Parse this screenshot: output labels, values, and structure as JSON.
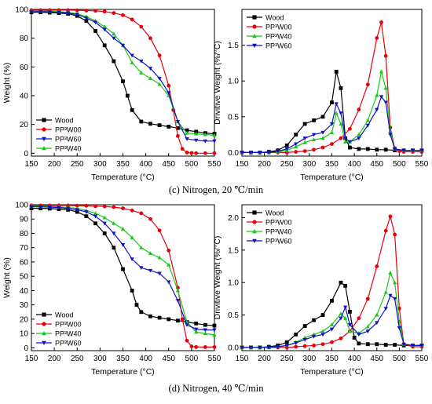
{
  "captions": [
    {
      "letter": "(c)",
      "text": "Nitrogen, 20 ℃/min"
    },
    {
      "letter": "(d)",
      "text": "Nitrogen, 40 ℃/min"
    }
  ],
  "series_styles": [
    {
      "color": "#000000",
      "marker": "square"
    },
    {
      "color": "#e8000b",
      "marker": "circle"
    },
    {
      "color": "#18c818",
      "marker": "triangle-up"
    },
    {
      "color": "#1010c8",
      "marker": "triangle-down"
    }
  ],
  "chart_data": [
    {
      "type": "line",
      "xlabel": "Temperature (°C)",
      "ylabel": "Weight (%)",
      "xlim": [
        150,
        550
      ],
      "ylim": [
        -2,
        100
      ],
      "xticks": [
        150,
        200,
        250,
        300,
        350,
        400,
        450,
        500,
        550
      ],
      "yticks": [
        0,
        20,
        40,
        60,
        80,
        100
      ],
      "legend_position": "bottom-left",
      "legend_order": [
        0,
        1,
        3,
        2
      ],
      "series": [
        {
          "name": "Wood",
          "x": [
            150,
            170,
            190,
            210,
            230,
            250,
            270,
            290,
            310,
            330,
            350,
            360,
            370,
            390,
            410,
            430,
            450,
            470,
            490,
            510,
            530,
            550
          ],
          "y": [
            98,
            98,
            97.8,
            97.5,
            97,
            95.5,
            92,
            85,
            75,
            64,
            50,
            40,
            30,
            22,
            20.5,
            19.5,
            18.5,
            17.5,
            16,
            15,
            14,
            13.5
          ]
        },
        {
          "name": "PP³W00",
          "x": [
            150,
            170,
            190,
            210,
            230,
            250,
            270,
            290,
            310,
            330,
            350,
            370,
            390,
            410,
            430,
            450,
            460,
            470,
            480,
            490,
            500,
            510,
            530,
            550
          ],
          "y": [
            99.5,
            99.5,
            99.5,
            99.5,
            99.5,
            99.4,
            99.2,
            99,
            98.5,
            97.5,
            96,
            93,
            88,
            80,
            68,
            47,
            30,
            12,
            3,
            0.5,
            0.2,
            0,
            0,
            0
          ]
        },
        {
          "name": "PP³W40",
          "x": [
            150,
            170,
            190,
            210,
            230,
            250,
            270,
            290,
            310,
            330,
            350,
            370,
            390,
            410,
            430,
            450,
            470,
            490,
            510,
            530,
            550
          ],
          "y": [
            99,
            99,
            98.8,
            98.5,
            98,
            97,
            95,
            92,
            88,
            83,
            75,
            63,
            56,
            52,
            48,
            40,
            22,
            14,
            13.5,
            13,
            12.5
          ]
        },
        {
          "name": "PP³W60",
          "x": [
            150,
            170,
            190,
            210,
            230,
            250,
            270,
            290,
            310,
            330,
            350,
            370,
            390,
            410,
            430,
            450,
            470,
            490,
            510,
            530,
            550
          ],
          "y": [
            98.5,
            98.5,
            98.3,
            98,
            97.5,
            96.5,
            94,
            91,
            86,
            80,
            75,
            68,
            64,
            59,
            52,
            42,
            22,
            10,
            9,
            8.5,
            8.5
          ]
        }
      ]
    },
    {
      "type": "line",
      "xlabel": "Temperature (°C)",
      "ylabel": "Drivitive Weight (%/°C)",
      "xlim": [
        150,
        550
      ],
      "ylim": [
        -0.05,
        2.0
      ],
      "xticks": [
        150,
        200,
        250,
        300,
        350,
        400,
        450,
        500,
        550
      ],
      "yticks": [
        0.0,
        0.5,
        1.0,
        1.5
      ],
      "legend_position": "top-left",
      "legend_order": [
        0,
        1,
        2,
        3
      ],
      "series": [
        {
          "name": "Wood",
          "x": [
            150,
            170,
            190,
            210,
            230,
            250,
            270,
            290,
            310,
            330,
            350,
            360,
            370,
            380,
            390,
            410,
            430,
            450,
            470,
            490,
            510,
            530,
            550
          ],
          "y": [
            0,
            0,
            0,
            0.01,
            0.03,
            0.1,
            0.25,
            0.4,
            0.45,
            0.5,
            0.7,
            1.13,
            0.9,
            0.2,
            0.07,
            0.05,
            0.05,
            0.04,
            0.04,
            0.03,
            0.03,
            0.03,
            0.03
          ]
        },
        {
          "name": "PP³W00",
          "x": [
            150,
            170,
            190,
            210,
            230,
            250,
            270,
            290,
            310,
            330,
            350,
            370,
            390,
            410,
            430,
            450,
            460,
            470,
            480,
            490,
            500,
            510,
            530,
            550
          ],
          "y": [
            0,
            0,
            0,
            0,
            0,
            0,
            0.01,
            0.02,
            0.04,
            0.07,
            0.12,
            0.2,
            0.33,
            0.6,
            0.95,
            1.6,
            1.82,
            1.35,
            0.35,
            0.06,
            0.02,
            0.01,
            0.01,
            0.01
          ]
        },
        {
          "name": "PP³W40",
          "x": [
            150,
            170,
            190,
            210,
            230,
            250,
            270,
            290,
            310,
            330,
            350,
            360,
            370,
            380,
            390,
            410,
            430,
            450,
            460,
            470,
            480,
            490,
            510,
            530,
            550
          ],
          "y": [
            0,
            0,
            0,
            0,
            0.01,
            0.03,
            0.08,
            0.14,
            0.18,
            0.2,
            0.28,
            0.55,
            0.4,
            0.15,
            0.15,
            0.25,
            0.45,
            0.8,
            1.13,
            0.9,
            0.3,
            0.05,
            0.03,
            0.03,
            0.03
          ]
        },
        {
          "name": "PP³W60",
          "x": [
            150,
            170,
            190,
            210,
            230,
            250,
            270,
            290,
            310,
            330,
            350,
            360,
            370,
            380,
            390,
            410,
            430,
            450,
            460,
            470,
            480,
            490,
            510,
            530,
            550
          ],
          "y": [
            0,
            0,
            0,
            0,
            0.02,
            0.05,
            0.12,
            0.2,
            0.25,
            0.28,
            0.4,
            0.68,
            0.55,
            0.2,
            0.15,
            0.2,
            0.38,
            0.6,
            0.78,
            0.7,
            0.25,
            0.05,
            0.03,
            0.03,
            0.03
          ]
        }
      ]
    },
    {
      "type": "line",
      "xlabel": "Temperature (°C)",
      "ylabel": "Weight (%)",
      "xlim": [
        150,
        550
      ],
      "ylim": [
        -2,
        100
      ],
      "xticks": [
        150,
        200,
        250,
        300,
        350,
        400,
        450,
        500,
        550
      ],
      "yticks": [
        0,
        10,
        20,
        30,
        40,
        50,
        60,
        70,
        80,
        90,
        100
      ],
      "legend_position": "bottom-left",
      "legend_order": [
        0,
        1,
        2,
        3
      ],
      "series": [
        {
          "name": "Wood",
          "x": [
            150,
            170,
            190,
            210,
            230,
            250,
            270,
            290,
            310,
            330,
            350,
            370,
            380,
            390,
            410,
            430,
            450,
            470,
            490,
            510,
            530,
            550
          ],
          "y": [
            97.5,
            97.5,
            97.3,
            97,
            96.5,
            95,
            92,
            87,
            80,
            70,
            55,
            40,
            30,
            25,
            22,
            21,
            20,
            19,
            18,
            17,
            16,
            15.5
          ]
        },
        {
          "name": "PP³W00",
          "x": [
            150,
            170,
            190,
            210,
            230,
            250,
            270,
            290,
            310,
            330,
            350,
            370,
            390,
            410,
            430,
            450,
            470,
            480,
            490,
            500,
            510,
            530,
            550
          ],
          "y": [
            99.5,
            99.5,
            99.5,
            99.5,
            99.5,
            99.4,
            99.3,
            99,
            98.8,
            98.3,
            97.5,
            96,
            94,
            90,
            82,
            68,
            42,
            20,
            5,
            1,
            0.5,
            0.5,
            0.5
          ]
        },
        {
          "name": "PP³W40",
          "x": [
            150,
            170,
            190,
            210,
            230,
            250,
            270,
            290,
            310,
            330,
            350,
            370,
            390,
            410,
            430,
            450,
            470,
            490,
            510,
            530,
            550
          ],
          "y": [
            99,
            99,
            98.8,
            98.5,
            98,
            97.5,
            96,
            94,
            91,
            87,
            83,
            77,
            70,
            66,
            63,
            58,
            40,
            18,
            11,
            10,
            9
          ]
        },
        {
          "name": "PP³W60",
          "x": [
            150,
            170,
            190,
            210,
            230,
            250,
            270,
            290,
            310,
            330,
            350,
            370,
            390,
            410,
            430,
            450,
            470,
            490,
            510,
            530,
            550
          ],
          "y": [
            98.5,
            98.5,
            98.3,
            98,
            97.5,
            96.5,
            95,
            92,
            87,
            80,
            72,
            62,
            56,
            54,
            52,
            46,
            33,
            16,
            13,
            12.5,
            12.5
          ]
        }
      ]
    },
    {
      "type": "line",
      "xlabel": "Temperature (°C)",
      "ylabel": "Drivitive Weight (%/°C)",
      "xlim": [
        150,
        550
      ],
      "ylim": [
        -0.05,
        2.2
      ],
      "xticks": [
        150,
        200,
        250,
        300,
        350,
        400,
        450,
        500,
        550
      ],
      "yticks": [
        0.0,
        0.5,
        1.0,
        1.5,
        2.0
      ],
      "legend_position": "top-left",
      "legend_order": [
        0,
        1,
        2,
        3
      ],
      "series": [
        {
          "name": "Wood",
          "x": [
            150,
            170,
            190,
            210,
            230,
            250,
            270,
            290,
            310,
            330,
            350,
            370,
            380,
            390,
            400,
            410,
            430,
            450,
            470,
            490,
            510,
            530,
            550
          ],
          "y": [
            0,
            0,
            0,
            0.01,
            0.03,
            0.08,
            0.2,
            0.33,
            0.42,
            0.5,
            0.72,
            1.0,
            0.95,
            0.55,
            0.15,
            0.06,
            0.05,
            0.05,
            0.04,
            0.04,
            0.03,
            0.03,
            0.03
          ]
        },
        {
          "name": "PP³W00",
          "x": [
            150,
            170,
            190,
            210,
            230,
            250,
            270,
            290,
            310,
            330,
            350,
            370,
            390,
            410,
            430,
            450,
            470,
            480,
            490,
            500,
            510,
            530,
            550
          ],
          "y": [
            0,
            0,
            0,
            0,
            0,
            0,
            0.01,
            0.02,
            0.03,
            0.05,
            0.08,
            0.14,
            0.25,
            0.45,
            0.75,
            1.25,
            1.8,
            2.02,
            1.74,
            0.6,
            0.05,
            0.01,
            0.01
          ]
        },
        {
          "name": "PP³W40",
          "x": [
            150,
            170,
            190,
            210,
            230,
            250,
            270,
            290,
            310,
            330,
            350,
            370,
            380,
            390,
            410,
            430,
            450,
            470,
            480,
            490,
            500,
            510,
            530,
            550
          ],
          "y": [
            0,
            0,
            0,
            0,
            0.01,
            0.03,
            0.08,
            0.15,
            0.2,
            0.25,
            0.35,
            0.52,
            0.45,
            0.25,
            0.22,
            0.32,
            0.5,
            0.85,
            1.15,
            1.0,
            0.4,
            0.05,
            0.03,
            0.03
          ]
        },
        {
          "name": "PP³W60",
          "x": [
            150,
            170,
            190,
            210,
            230,
            250,
            270,
            290,
            310,
            330,
            350,
            370,
            380,
            390,
            410,
            430,
            450,
            470,
            480,
            490,
            500,
            510,
            530,
            550
          ],
          "y": [
            0,
            0,
            0,
            0,
            0.01,
            0.03,
            0.07,
            0.12,
            0.17,
            0.2,
            0.28,
            0.45,
            0.62,
            0.35,
            0.2,
            0.25,
            0.38,
            0.6,
            0.8,
            0.75,
            0.3,
            0.05,
            0.03,
            0.03
          ]
        }
      ]
    }
  ]
}
